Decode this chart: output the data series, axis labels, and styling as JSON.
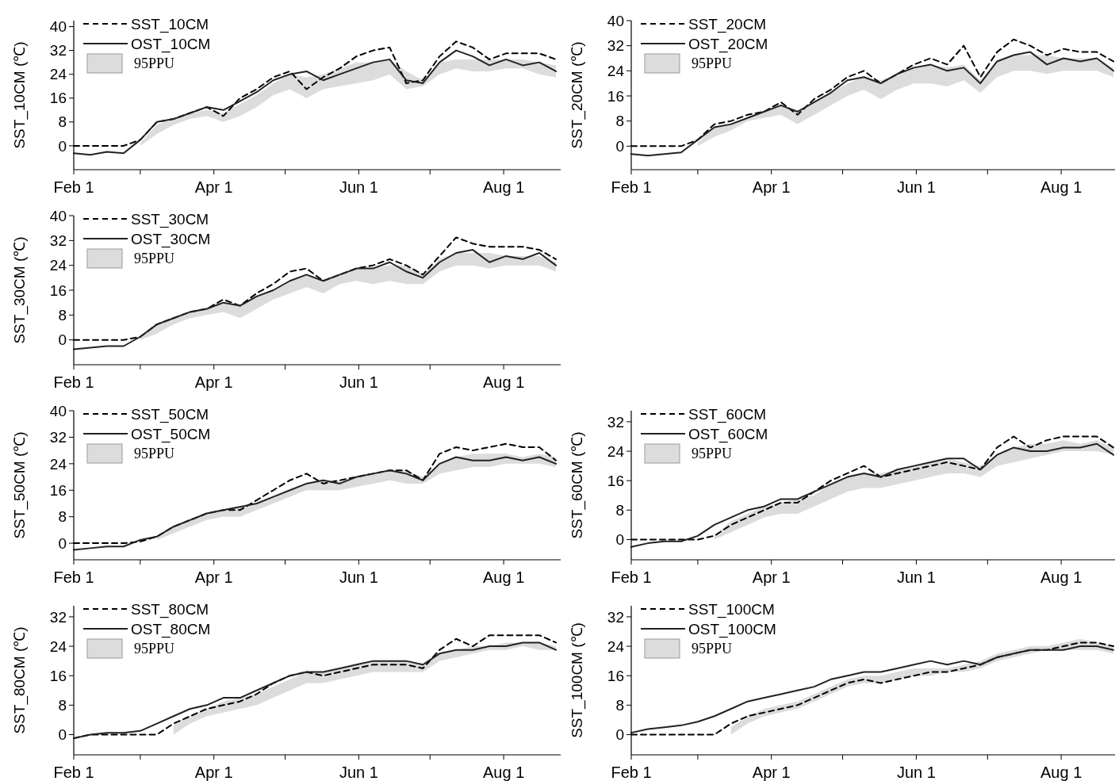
{
  "chart_data": [
    {
      "type": "line",
      "ylabel": "SST_10CM (℃)",
      "legend": "top left",
      "annotations": [
        "95PPU"
      ],
      "x": [
        "--02-01",
        "--02-08",
        "--02-15",
        "--02-22",
        "--03-01",
        "--03-08",
        "--03-15",
        "--03-22",
        "--03-29",
        "--04-05",
        "--04-12",
        "--04-19",
        "--04-26",
        "--05-03",
        "--05-10",
        "--05-17",
        "--05-24",
        "--05-31",
        "--06-07",
        "--06-14",
        "--06-21",
        "--06-28",
        "--07-05",
        "--07-12",
        "--07-19",
        "--07-26",
        "--08-02",
        "--08-09",
        "--08-16",
        "--08-23"
      ],
      "xlim": [
        "--02-01",
        "--08-25"
      ],
      "xticks": [
        {
          "value": "--02-01",
          "label": "Feb 1"
        },
        {
          "value": "--03-01",
          "label": null
        },
        {
          "value": "--04-01",
          "label": "Apr 1"
        },
        {
          "value": "--05-01",
          "label": null
        },
        {
          "value": "--06-01",
          "label": "Jun 1"
        },
        {
          "value": "--07-01",
          "label": null
        },
        {
          "value": "--08-01",
          "label": "Aug 1"
        }
      ],
      "ylim": [
        -8,
        42
      ],
      "yticks": [
        0,
        8,
        16,
        24,
        32,
        40
      ],
      "series": [
        {
          "name": "SST_10CM",
          "type": "line",
          "line_style": "dashed",
          "color": "#000000",
          "values": [
            0,
            0,
            0,
            0,
            2,
            8,
            9,
            11,
            13,
            10,
            16,
            19,
            23,
            25,
            19,
            23,
            26,
            30,
            32,
            33,
            21,
            22,
            30,
            35,
            33,
            29,
            31,
            31,
            31,
            29
          ],
          "lower": [
            null,
            null,
            null,
            null,
            0,
            4,
            7,
            9,
            10,
            8,
            10,
            13,
            17,
            19,
            16,
            19,
            20,
            21,
            22,
            24,
            19,
            20,
            24,
            26,
            25,
            25,
            26,
            26,
            24,
            23
          ],
          "upper": [
            null,
            null,
            null,
            null,
            1,
            7,
            9,
            11,
            12,
            11,
            14,
            17,
            21,
            24,
            23,
            24,
            26,
            28,
            28,
            29,
            25,
            22,
            28,
            29,
            29,
            29,
            29,
            29,
            28,
            27
          ]
        },
        {
          "name": "OST_10CM",
          "type": "line",
          "line_style": "solid",
          "color": "#222222",
          "values": [
            -2.5,
            -3,
            -2,
            -2.5,
            2,
            8,
            9,
            11,
            13,
            12,
            15,
            18,
            22,
            24,
            25,
            22,
            24,
            26,
            28,
            29,
            22,
            21,
            28,
            32,
            30,
            27,
            29,
            27,
            28,
            25
          ]
        }
      ]
    },
    {
      "type": "line",
      "ylabel": "SST_20CM (℃)",
      "legend": "top left",
      "annotations": [
        "95PPU"
      ],
      "x": [
        "--02-01",
        "--02-08",
        "--02-15",
        "--02-22",
        "--03-01",
        "--03-08",
        "--03-15",
        "--03-22",
        "--03-29",
        "--04-05",
        "--04-12",
        "--04-19",
        "--04-26",
        "--05-03",
        "--05-10",
        "--05-17",
        "--05-24",
        "--05-31",
        "--06-07",
        "--06-14",
        "--06-21",
        "--06-28",
        "--07-05",
        "--07-12",
        "--07-19",
        "--07-26",
        "--08-02",
        "--08-09",
        "--08-16",
        "--08-23"
      ],
      "xlim": [
        "--02-01",
        "--08-25"
      ],
      "xticks": [
        {
          "value": "--02-01",
          "label": "Feb 1"
        },
        {
          "value": "--03-01",
          "label": null
        },
        {
          "value": "--04-01",
          "label": "Apr 1"
        },
        {
          "value": "--05-01",
          "label": null
        },
        {
          "value": "--06-01",
          "label": "Jun 1"
        },
        {
          "value": "--07-01",
          "label": null
        },
        {
          "value": "--08-01",
          "label": "Aug 1"
        }
      ],
      "ylim": [
        -7.5,
        40
      ],
      "yticks": [
        0,
        8,
        16,
        24,
        32,
        40
      ],
      "series": [
        {
          "name": "SST_20CM",
          "type": "line",
          "line_style": "dashed",
          "color": "#000000",
          "values": [
            0,
            0,
            0,
            0,
            2,
            7,
            8,
            10,
            11,
            14,
            10,
            15,
            18,
            22,
            24,
            20,
            23,
            26,
            28,
            26,
            32,
            22,
            30,
            34,
            32,
            29,
            31,
            30,
            30,
            27
          ],
          "lower": [
            null,
            null,
            null,
            null,
            0,
            3,
            5,
            8,
            9,
            10,
            7,
            10,
            13,
            16,
            18,
            15,
            18,
            20,
            20,
            19,
            21,
            17,
            22,
            24,
            24,
            23,
            24,
            24,
            24,
            22
          ],
          "upper": [
            null,
            null,
            null,
            null,
            1,
            6,
            7,
            9,
            11,
            13,
            11,
            14,
            17,
            20,
            22,
            21,
            23,
            25,
            26,
            25,
            26,
            21,
            27,
            29,
            29,
            29,
            28,
            28,
            28,
            25
          ]
        },
        {
          "name": "OST_20CM",
          "type": "line",
          "line_style": "solid",
          "color": "#222222",
          "values": [
            -2.5,
            -3,
            -2.5,
            -2,
            2,
            6,
            7,
            9,
            11,
            13,
            11,
            14,
            17,
            21,
            22,
            20,
            23,
            25,
            26,
            24,
            25,
            20,
            27,
            29,
            30,
            26,
            28,
            27,
            28,
            24
          ]
        }
      ]
    },
    {
      "type": "line",
      "ylabel": "SST_30CM (℃)",
      "legend": "top left",
      "annotations": [
        "95PPU"
      ],
      "x": [
        "--02-01",
        "--02-08",
        "--02-15",
        "--02-22",
        "--03-01",
        "--03-08",
        "--03-15",
        "--03-22",
        "--03-29",
        "--04-05",
        "--04-12",
        "--04-19",
        "--04-26",
        "--05-03",
        "--05-10",
        "--05-17",
        "--05-24",
        "--05-31",
        "--06-07",
        "--06-14",
        "--06-21",
        "--06-28",
        "--07-05",
        "--07-12",
        "--07-19",
        "--07-26",
        "--08-02",
        "--08-09",
        "--08-16",
        "--08-23"
      ],
      "xlim": [
        "--02-01",
        "--08-25"
      ],
      "xticks": [
        {
          "value": "--02-01",
          "label": "Feb 1"
        },
        {
          "value": "--03-01",
          "label": null
        },
        {
          "value": "--04-01",
          "label": "Apr 1"
        },
        {
          "value": "--05-01",
          "label": null
        },
        {
          "value": "--06-01",
          "label": "Jun 1"
        },
        {
          "value": "--07-01",
          "label": null
        },
        {
          "value": "--08-01",
          "label": "Aug 1"
        }
      ],
      "ylim": [
        -8,
        40
      ],
      "yticks": [
        0,
        8,
        16,
        24,
        32,
        40
      ],
      "series": [
        {
          "name": "SST_30CM",
          "type": "line",
          "line_style": "dashed",
          "color": "#000000",
          "values": [
            0,
            0,
            0,
            0,
            1,
            5,
            7,
            9,
            10,
            13,
            11,
            15,
            18,
            22,
            23,
            19,
            21,
            23,
            24,
            26,
            24,
            21,
            27,
            33,
            31,
            30,
            30,
            30,
            29,
            26
          ],
          "lower": [
            null,
            null,
            null,
            null,
            0,
            2,
            5,
            7,
            8,
            9,
            7,
            10,
            13,
            15,
            17,
            15,
            18,
            19,
            18,
            19,
            18,
            18,
            22,
            24,
            24,
            23,
            24,
            24,
            24,
            22
          ],
          "upper": [
            null,
            null,
            null,
            null,
            1,
            5,
            7,
            9,
            10,
            12,
            11,
            14,
            16,
            19,
            21,
            19,
            21,
            23,
            23,
            24,
            24,
            21,
            26,
            28,
            28,
            28,
            27,
            27,
            27,
            25
          ]
        },
        {
          "name": "OST_30CM",
          "type": "line",
          "line_style": "solid",
          "color": "#222222",
          "values": [
            -3,
            -2.5,
            -2,
            -2,
            1,
            5,
            7,
            9,
            10,
            12,
            11,
            14,
            16,
            19,
            21,
            19,
            21,
            23,
            23,
            25,
            22,
            20,
            25,
            28,
            29,
            25,
            27,
            26,
            28,
            24
          ]
        }
      ]
    },
    {
      "type": "line",
      "ylabel": "SST_50CM (℃)",
      "legend": "top left",
      "annotations": [
        "95PPU"
      ],
      "x": [
        "--02-01",
        "--02-08",
        "--02-15",
        "--02-22",
        "--03-01",
        "--03-08",
        "--03-15",
        "--03-22",
        "--03-29",
        "--04-05",
        "--04-12",
        "--04-19",
        "--04-26",
        "--05-03",
        "--05-10",
        "--05-17",
        "--05-24",
        "--05-31",
        "--06-07",
        "--06-14",
        "--06-21",
        "--06-28",
        "--07-05",
        "--07-12",
        "--07-19",
        "--07-26",
        "--08-02",
        "--08-09",
        "--08-16",
        "--08-23"
      ],
      "xlim": [
        "--02-01",
        "--08-25"
      ],
      "xticks": [
        {
          "value": "--02-01",
          "label": "Feb 1"
        },
        {
          "value": "--03-01",
          "label": null
        },
        {
          "value": "--04-01",
          "label": "Apr 1"
        },
        {
          "value": "--05-01",
          "label": null
        },
        {
          "value": "--06-01",
          "label": "Jun 1"
        },
        {
          "value": "--07-01",
          "label": null
        },
        {
          "value": "--08-01",
          "label": "Aug 1"
        }
      ],
      "ylim": [
        -5,
        40
      ],
      "yticks": [
        0,
        8,
        16,
        24,
        32,
        40
      ],
      "series": [
        {
          "name": "SST_50CM",
          "type": "line",
          "line_style": "dashed",
          "color": "#000000",
          "values": [
            0,
            0,
            0,
            0,
            0.5,
            2,
            5,
            7,
            9,
            10,
            10,
            13,
            16,
            19,
            21,
            18,
            19,
            20,
            21,
            22,
            22,
            19,
            27,
            29,
            28,
            29,
            30,
            29,
            29,
            25
          ],
          "lower": [
            null,
            null,
            null,
            null,
            null,
            1,
            3,
            5,
            7,
            8,
            8,
            10,
            12,
            14,
            16,
            16,
            16,
            17,
            18,
            19,
            18,
            18,
            21,
            22,
            23,
            23,
            24,
            24,
            24,
            23
          ],
          "upper": [
            null,
            null,
            null,
            null,
            null,
            2,
            5,
            7,
            9,
            10,
            11,
            12,
            14,
            16,
            18,
            19,
            19,
            20,
            21,
            22,
            22,
            20,
            24,
            26,
            27,
            27,
            27,
            26,
            27,
            26
          ]
        },
        {
          "name": "OST_50CM",
          "type": "line",
          "line_style": "solid",
          "color": "#222222",
          "values": [
            -2,
            -1.5,
            -1,
            -1,
            1,
            2,
            5,
            7,
            9,
            10,
            11,
            12,
            14,
            16,
            18,
            19,
            18,
            20,
            21,
            22,
            21,
            19,
            24,
            26,
            25,
            25,
            26,
            25,
            26,
            24
          ]
        }
      ]
    },
    {
      "type": "line",
      "ylabel": "SST_60CM (℃)",
      "legend": "top left",
      "annotations": [
        "95PPU"
      ],
      "x": [
        "--02-01",
        "--02-08",
        "--02-15",
        "--02-22",
        "--03-01",
        "--03-08",
        "--03-15",
        "--03-22",
        "--03-29",
        "--04-05",
        "--04-12",
        "--04-19",
        "--04-26",
        "--05-03",
        "--05-10",
        "--05-17",
        "--05-24",
        "--05-31",
        "--06-07",
        "--06-14",
        "--06-21",
        "--06-28",
        "--07-05",
        "--07-12",
        "--07-19",
        "--07-26",
        "--08-02",
        "--08-09",
        "--08-16",
        "--08-23"
      ],
      "xlim": [
        "--02-01",
        "--08-25"
      ],
      "xticks": [
        {
          "value": "--02-01",
          "label": "Feb 1"
        },
        {
          "value": "--03-01",
          "label": null
        },
        {
          "value": "--04-01",
          "label": "Apr 1"
        },
        {
          "value": "--05-01",
          "label": null
        },
        {
          "value": "--06-01",
          "label": "Jun 1"
        },
        {
          "value": "--07-01",
          "label": null
        },
        {
          "value": "--08-01",
          "label": "Aug 1"
        }
      ],
      "ylim": [
        -5.5,
        35
      ],
      "yticks": [
        0,
        8,
        16,
        24,
        32
      ],
      "series": [
        {
          "name": "SST_60CM",
          "type": "line",
          "line_style": "dashed",
          "color": "#000000",
          "values": [
            0,
            0,
            0,
            0,
            0,
            1,
            4,
            6,
            8,
            10,
            10,
            13,
            16,
            18,
            20,
            17,
            18,
            19,
            20,
            21,
            20,
            19,
            25,
            28,
            25,
            27,
            28,
            28,
            28,
            25
          ],
          "lower": [
            null,
            null,
            null,
            null,
            null,
            0,
            2,
            4,
            6,
            7,
            7,
            9,
            11,
            13,
            14,
            14,
            15,
            16,
            17,
            18,
            18,
            17,
            20,
            21,
            22,
            23,
            24,
            24,
            24,
            23
          ],
          "upper": [
            null,
            null,
            null,
            null,
            null,
            1,
            5,
            7,
            9,
            10,
            11,
            12,
            15,
            17,
            18,
            18,
            19,
            20,
            21,
            22,
            21,
            20,
            23,
            25,
            26,
            26,
            27,
            26,
            27,
            25
          ]
        },
        {
          "name": "OST_60CM",
          "type": "line",
          "line_style": "solid",
          "color": "#222222",
          "values": [
            -2,
            -1,
            -0.5,
            -0.5,
            1,
            4,
            6,
            8,
            9,
            11,
            11,
            13,
            15,
            17,
            18,
            17,
            19,
            20,
            21,
            22,
            22,
            19,
            23,
            25,
            24,
            24,
            25,
            25,
            26,
            23
          ]
        }
      ]
    },
    {
      "type": "line",
      "ylabel": "SST_80CM (℃)",
      "legend": "top left",
      "annotations": [
        "95PPU"
      ],
      "x": [
        "--02-01",
        "--02-08",
        "--02-15",
        "--02-22",
        "--03-01",
        "--03-08",
        "--03-15",
        "--03-22",
        "--03-29",
        "--04-05",
        "--04-12",
        "--04-19",
        "--04-26",
        "--05-03",
        "--05-10",
        "--05-17",
        "--05-24",
        "--05-31",
        "--06-07",
        "--06-14",
        "--06-21",
        "--06-28",
        "--07-05",
        "--07-12",
        "--07-19",
        "--07-26",
        "--08-02",
        "--08-09",
        "--08-16",
        "--08-23"
      ],
      "xlim": [
        "--02-01",
        "--08-25"
      ],
      "xticks": [
        {
          "value": "--02-01",
          "label": "Feb 1"
        },
        {
          "value": "--03-01",
          "label": null
        },
        {
          "value": "--04-01",
          "label": "Apr 1"
        },
        {
          "value": "--05-01",
          "label": null
        },
        {
          "value": "--06-01",
          "label": "Jun 1"
        },
        {
          "value": "--07-01",
          "label": null
        },
        {
          "value": "--08-01",
          "label": "Aug 1"
        }
      ],
      "ylim": [
        -5.5,
        35
      ],
      "yticks": [
        0,
        8,
        16,
        24,
        32
      ],
      "series": [
        {
          "name": "SST_80CM",
          "type": "line",
          "line_style": "dashed",
          "color": "#000000",
          "values": [
            -1,
            0,
            0,
            0,
            0,
            0,
            3,
            5,
            7,
            8,
            9,
            11,
            14,
            16,
            17,
            16,
            17,
            18,
            19,
            19,
            19,
            18,
            23,
            26,
            24,
            27,
            27,
            27,
            27,
            25
          ],
          "lower": [
            null,
            null,
            null,
            null,
            null,
            null,
            0,
            3,
            5,
            6,
            7,
            8,
            10,
            12,
            14,
            14,
            15,
            16,
            17,
            17,
            17,
            17,
            20,
            21,
            22,
            23,
            23,
            24,
            23,
            23
          ],
          "upper": [
            null,
            null,
            null,
            null,
            null,
            null,
            3,
            5,
            7,
            9,
            10,
            11,
            13,
            15,
            17,
            17,
            18,
            19,
            20,
            20,
            20,
            19,
            22,
            23,
            24,
            24,
            25,
            25,
            25,
            24
          ]
        },
        {
          "name": "OST_80CM",
          "type": "line",
          "line_style": "solid",
          "color": "#222222",
          "values": [
            -1,
            0,
            0.5,
            0.5,
            1,
            3,
            5,
            7,
            8,
            10,
            10,
            12,
            14,
            16,
            17,
            17,
            18,
            19,
            20,
            20,
            20,
            19,
            22,
            23,
            23,
            24,
            24,
            25,
            25,
            23
          ]
        }
      ]
    },
    {
      "type": "line",
      "ylabel": "SST_100CM (℃)",
      "legend": "top left",
      "annotations": [
        "95PPU"
      ],
      "x": [
        "--02-01",
        "--02-08",
        "--02-15",
        "--02-22",
        "--03-01",
        "--03-08",
        "--03-15",
        "--03-22",
        "--03-29",
        "--04-05",
        "--04-12",
        "--04-19",
        "--04-26",
        "--05-03",
        "--05-10",
        "--05-17",
        "--05-24",
        "--05-31",
        "--06-07",
        "--06-14",
        "--06-21",
        "--06-28",
        "--07-05",
        "--07-12",
        "--07-19",
        "--07-26",
        "--08-02",
        "--08-09",
        "--08-16",
        "--08-23"
      ],
      "xlim": [
        "--02-01",
        "--08-25"
      ],
      "xticks": [
        {
          "value": "--02-01",
          "label": "Feb 1"
        },
        {
          "value": "--03-01",
          "label": null
        },
        {
          "value": "--04-01",
          "label": "Apr 1"
        },
        {
          "value": "--05-01",
          "label": null
        },
        {
          "value": "--06-01",
          "label": "Jun 1"
        },
        {
          "value": "--07-01",
          "label": null
        },
        {
          "value": "--08-01",
          "label": "Aug 1"
        }
      ],
      "ylim": [
        -5.5,
        35
      ],
      "yticks": [
        0,
        8,
        16,
        24,
        32
      ],
      "series": [
        {
          "name": "SST_100CM",
          "type": "line",
          "line_style": "dashed",
          "color": "#000000",
          "values": [
            0,
            0,
            0,
            0,
            0,
            0,
            3,
            5,
            6,
            7,
            8,
            10,
            12,
            14,
            15,
            14,
            15,
            16,
            17,
            17,
            18,
            19,
            21,
            22,
            23,
            23,
            24,
            25,
            25,
            24
          ],
          "lower": [
            null,
            null,
            null,
            null,
            null,
            null,
            0,
            3,
            5,
            6,
            7,
            9,
            11,
            13,
            14,
            14,
            15,
            16,
            16,
            17,
            17,
            18,
            20,
            21,
            22,
            23,
            23,
            23,
            23,
            22
          ],
          "upper": [
            null,
            null,
            null,
            null,
            null,
            null,
            2,
            5,
            7,
            8,
            9,
            11,
            13,
            15,
            16,
            16,
            17,
            18,
            18,
            18,
            19,
            20,
            22,
            23,
            24,
            24,
            25,
            26,
            25,
            24
          ]
        },
        {
          "name": "OST_100CM",
          "type": "line",
          "line_style": "solid",
          "color": "#222222",
          "values": [
            0.5,
            1.5,
            2,
            2.5,
            3.5,
            5,
            7,
            9,
            10,
            11,
            12,
            13,
            15,
            16,
            17,
            17,
            18,
            19,
            20,
            19,
            20,
            19,
            21,
            22,
            23,
            23,
            23,
            24,
            24,
            23
          ]
        }
      ]
    }
  ]
}
